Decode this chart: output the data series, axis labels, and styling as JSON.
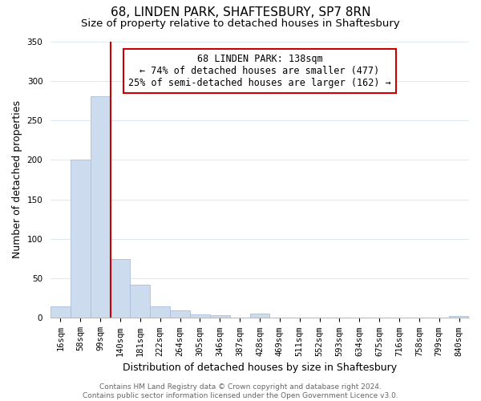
{
  "title": "68, LINDEN PARK, SHAFTESBURY, SP7 8RN",
  "subtitle": "Size of property relative to detached houses in Shaftesbury",
  "xlabel": "Distribution of detached houses by size in Shaftesbury",
  "ylabel": "Number of detached properties",
  "bar_labels": [
    "16sqm",
    "58sqm",
    "99sqm",
    "140sqm",
    "181sqm",
    "222sqm",
    "264sqm",
    "305sqm",
    "346sqm",
    "387sqm",
    "428sqm",
    "469sqm",
    "511sqm",
    "552sqm",
    "593sqm",
    "634sqm",
    "675sqm",
    "716sqm",
    "758sqm",
    "799sqm",
    "840sqm"
  ],
  "bar_heights": [
    15,
    200,
    280,
    75,
    42,
    15,
    10,
    5,
    3,
    0,
    6,
    0,
    0,
    0,
    0,
    0,
    0,
    0,
    0,
    0,
    2
  ],
  "bar_color": "#ccdcee",
  "bar_edge_color": "#aabfda",
  "property_line_color": "#cc0000",
  "ylim": [
    0,
    350
  ],
  "yticks": [
    0,
    50,
    100,
    150,
    200,
    250,
    300,
    350
  ],
  "annotation_title": "68 LINDEN PARK: 138sqm",
  "annotation_line1": "← 74% of detached houses are smaller (477)",
  "annotation_line2": "25% of semi-detached houses are larger (162) →",
  "annotation_box_color": "#ffffff",
  "annotation_box_edge_color": "#cc0000",
  "footer_line1": "Contains HM Land Registry data © Crown copyright and database right 2024.",
  "footer_line2": "Contains public sector information licensed under the Open Government Licence v3.0.",
  "background_color": "#ffffff",
  "grid_color": "#dde8f0",
  "title_fontsize": 11,
  "subtitle_fontsize": 9.5,
  "axis_label_fontsize": 9,
  "tick_fontsize": 7.5,
  "annotation_fontsize": 8.5,
  "footer_fontsize": 6.5
}
